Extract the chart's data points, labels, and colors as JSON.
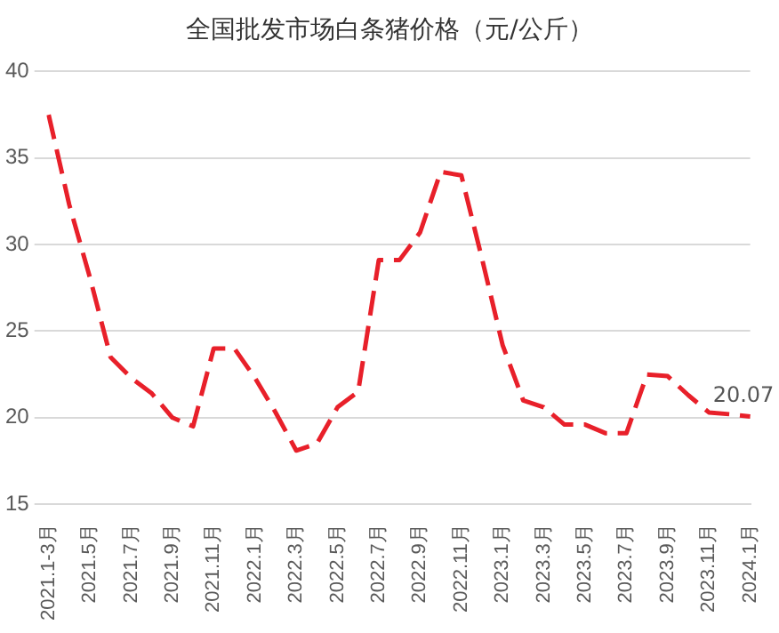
{
  "chart_data": {
    "type": "line",
    "title": "全国批发市场白条猪价格（元/公斤）",
    "categories": [
      "2021.1-3月",
      null,
      "2021.5月",
      null,
      "2021.7月",
      null,
      "2021.9月",
      null,
      "2021.11月",
      null,
      "2022.1月",
      null,
      "2022.3月",
      null,
      "2022.5月",
      null,
      "2022.7月",
      null,
      "2022.9月",
      null,
      "2022.11月",
      null,
      "2023.1月",
      null,
      "2023.3月",
      null,
      "2023.5月",
      null,
      "2023.7月",
      null,
      "2023.9月",
      null,
      "2023.11月",
      null,
      "2024.1月"
    ],
    "series": [
      {
        "color": "#e8202a",
        "values": [
          37.5,
          32.3,
          28.1,
          23.5,
          22.3,
          21.4,
          20.0,
          19.5,
          24.0,
          24.0,
          22.3,
          20.3,
          18.1,
          18.5,
          20.6,
          21.5,
          29.1,
          29.1,
          30.7,
          34.2,
          34.0,
          29.2,
          24.2,
          21.0,
          20.6,
          19.6,
          19.6,
          19.1,
          19.1,
          22.5,
          22.4,
          21.3,
          20.3,
          20.2,
          20.07
        ],
        "value_labels": [
          null,
          null,
          null,
          null,
          null,
          null,
          null,
          null,
          null,
          null,
          null,
          null,
          null,
          null,
          null,
          null,
          null,
          null,
          null,
          null,
          null,
          null,
          null,
          null,
          null,
          null,
          null,
          null,
          null,
          null,
          null,
          null,
          null,
          null,
          "20.07"
        ]
      }
    ],
    "ylim": [
      15,
      40
    ],
    "yticks": [
      15,
      20,
      25,
      30,
      35,
      40
    ],
    "grid": "y",
    "legend": false,
    "marker": "none",
    "line_style": "dashed"
  }
}
